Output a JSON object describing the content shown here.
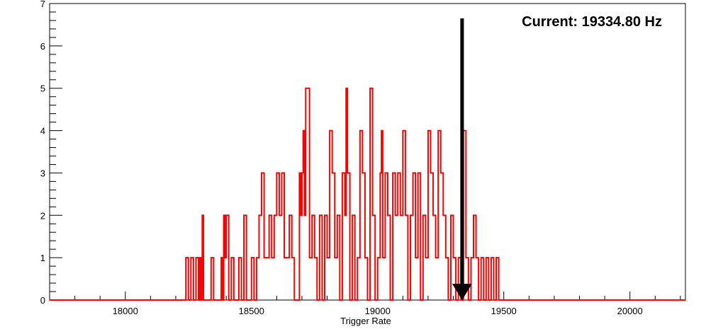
{
  "chart_data": {
    "type": "histogram",
    "title": "",
    "xlabel": "Trigger Rate",
    "ylabel": "",
    "xlim": [
      17700,
      20220
    ],
    "ylim": [
      0,
      7
    ],
    "x_ticks": [
      18000,
      18500,
      19000,
      19500,
      20000
    ],
    "y_ticks": [
      0,
      1,
      2,
      3,
      4,
      5,
      6,
      7
    ],
    "grid": false,
    "line_color": "#ff0000",
    "annotation": {
      "text": "Current: 19334.80 Hz",
      "arrow_x": 19334.8,
      "color": "#000000"
    },
    "bins": [
      [
        18240,
        1
      ],
      [
        18250,
        0
      ],
      [
        18260,
        1
      ],
      [
        18270,
        0
      ],
      [
        18280,
        1
      ],
      [
        18290,
        0
      ],
      [
        18295,
        1
      ],
      [
        18300,
        0
      ],
      [
        18305,
        2
      ],
      [
        18310,
        0
      ],
      [
        18340,
        1
      ],
      [
        18350,
        0
      ],
      [
        18380,
        1
      ],
      [
        18385,
        0
      ],
      [
        18390,
        2
      ],
      [
        18395,
        1
      ],
      [
        18400,
        2
      ],
      [
        18410,
        0
      ],
      [
        18420,
        1
      ],
      [
        18430,
        0
      ],
      [
        18450,
        1
      ],
      [
        18460,
        0
      ],
      [
        18470,
        2
      ],
      [
        18480,
        0
      ],
      [
        18500,
        1
      ],
      [
        18510,
        0
      ],
      [
        18520,
        1
      ],
      [
        18530,
        2
      ],
      [
        18540,
        3
      ],
      [
        18550,
        1
      ],
      [
        18570,
        2
      ],
      [
        18580,
        1
      ],
      [
        18590,
        2
      ],
      [
        18600,
        3
      ],
      [
        18610,
        2
      ],
      [
        18620,
        3
      ],
      [
        18630,
        1
      ],
      [
        18650,
        2
      ],
      [
        18660,
        1
      ],
      [
        18670,
        0
      ],
      [
        18690,
        3
      ],
      [
        18695,
        2
      ],
      [
        18700,
        3
      ],
      [
        18705,
        4
      ],
      [
        18710,
        2
      ],
      [
        18715,
        5
      ],
      [
        18730,
        1
      ],
      [
        18740,
        2
      ],
      [
        18750,
        1
      ],
      [
        18760,
        0
      ],
      [
        18770,
        2
      ],
      [
        18780,
        0
      ],
      [
        18790,
        2
      ],
      [
        18800,
        1
      ],
      [
        18810,
        4
      ],
      [
        18820,
        3
      ],
      [
        18830,
        1
      ],
      [
        18840,
        2
      ],
      [
        18850,
        0
      ],
      [
        18860,
        3
      ],
      [
        18870,
        2
      ],
      [
        18875,
        5
      ],
      [
        18880,
        3
      ],
      [
        18890,
        0
      ],
      [
        18900,
        2
      ],
      [
        18910,
        0
      ],
      [
        18920,
        1
      ],
      [
        18930,
        4
      ],
      [
        18940,
        3
      ],
      [
        18950,
        1
      ],
      [
        18960,
        0
      ],
      [
        18970,
        5
      ],
      [
        18980,
        2
      ],
      [
        18990,
        0
      ],
      [
        19000,
        1
      ],
      [
        19010,
        3
      ],
      [
        19015,
        4
      ],
      [
        19020,
        1
      ],
      [
        19030,
        3
      ],
      [
        19040,
        2
      ],
      [
        19050,
        0
      ],
      [
        19060,
        3
      ],
      [
        19070,
        2
      ],
      [
        19080,
        3
      ],
      [
        19090,
        2
      ],
      [
        19100,
        4
      ],
      [
        19110,
        2
      ],
      [
        19120,
        0
      ],
      [
        19130,
        2
      ],
      [
        19140,
        3
      ],
      [
        19150,
        1
      ],
      [
        19160,
        3
      ],
      [
        19170,
        0
      ],
      [
        19180,
        2
      ],
      [
        19190,
        1
      ],
      [
        19200,
        4
      ],
      [
        19210,
        3
      ],
      [
        19220,
        2
      ],
      [
        19230,
        1
      ],
      [
        19240,
        4
      ],
      [
        19250,
        3
      ],
      [
        19260,
        2
      ],
      [
        19270,
        1
      ],
      [
        19280,
        0
      ],
      [
        19290,
        2
      ],
      [
        19300,
        1
      ],
      [
        19310,
        0
      ],
      [
        19320,
        1
      ],
      [
        19330,
        0
      ],
      [
        19340,
        4
      ],
      [
        19350,
        1
      ],
      [
        19360,
        0
      ],
      [
        19370,
        1
      ],
      [
        19380,
        2
      ],
      [
        19390,
        1
      ],
      [
        19400,
        0
      ],
      [
        19410,
        1
      ],
      [
        19420,
        0
      ],
      [
        19430,
        1
      ],
      [
        19440,
        0
      ],
      [
        19450,
        1
      ],
      [
        19460,
        0
      ],
      [
        19470,
        1
      ],
      [
        19480,
        0
      ]
    ]
  }
}
